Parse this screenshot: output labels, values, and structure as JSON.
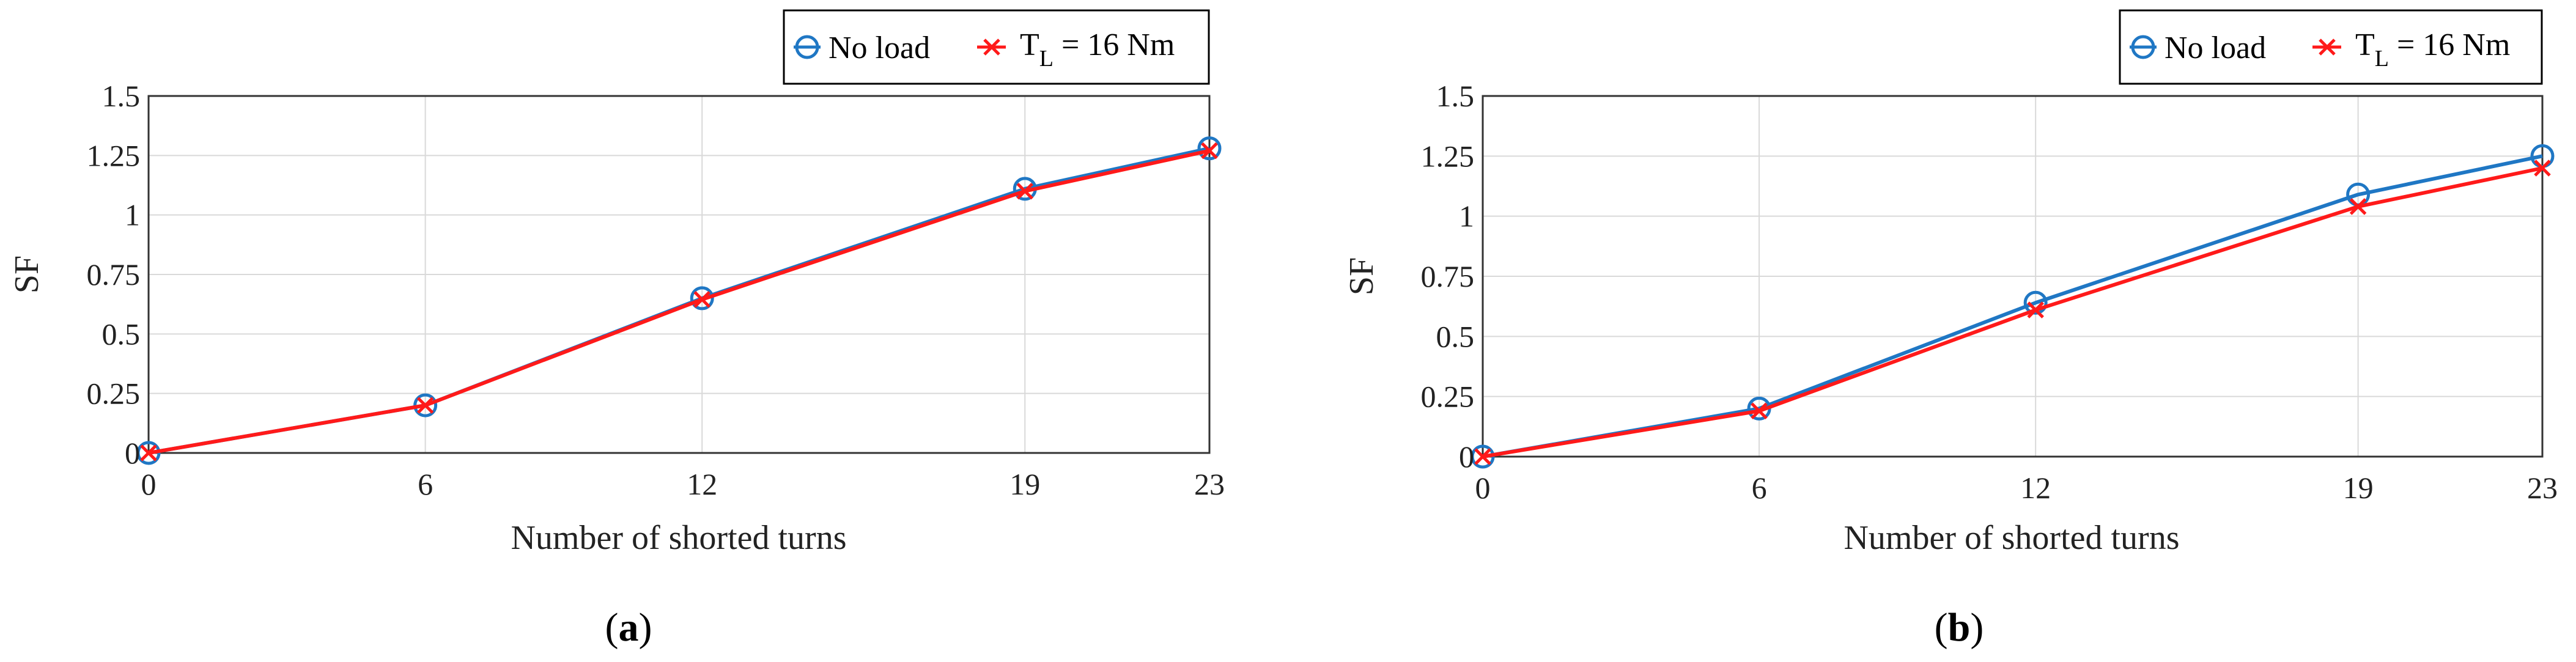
{
  "chart_data": [
    {
      "type": "line",
      "panel_label": "a",
      "x": [
        0,
        6,
        12,
        19,
        23
      ],
      "xticks": [
        "0",
        "6",
        "12",
        "19",
        "23"
      ],
      "yticks": [
        "0",
        "0.25",
        "0.5",
        "0.75",
        "1",
        "1.25",
        "1.5"
      ],
      "xlim": [
        0,
        23
      ],
      "ylim": [
        0,
        1.5
      ],
      "xlabel": "Number of shorted turns",
      "ylabel": "SF",
      "grid": true,
      "legend_position": "top-right (outside, above plot)",
      "series": [
        {
          "name": "No load",
          "marker": "circle",
          "color": "#1f77c4",
          "values": [
            0,
            0.2,
            0.65,
            1.11,
            1.28
          ]
        },
        {
          "name": "T_L = 16 Nm",
          "marker": "x",
          "color": "#ff1a1a",
          "values": [
            0,
            0.2,
            0.645,
            1.1,
            1.27
          ]
        }
      ]
    },
    {
      "type": "line",
      "panel_label": "b",
      "x": [
        0,
        6,
        12,
        19,
        23
      ],
      "xticks": [
        "0",
        "6",
        "12",
        "19",
        "23"
      ],
      "yticks": [
        "0",
        "0.25",
        "0.5",
        "0.75",
        "1",
        "1.25",
        "1.5"
      ],
      "xlim": [
        0,
        23
      ],
      "ylim": [
        0,
        1.5
      ],
      "xlabel": "Number of shorted turns",
      "ylabel": "SF",
      "grid": true,
      "legend_position": "top-right (outside, above plot)",
      "series": [
        {
          "name": "No load",
          "marker": "circle",
          "color": "#1f77c4",
          "values": [
            0,
            0.2,
            0.64,
            1.09,
            1.25
          ]
        },
        {
          "name": "T_L = 16 Nm",
          "marker": "x",
          "color": "#ff1a1a",
          "values": [
            0,
            0.19,
            0.61,
            1.04,
            1.2
          ]
        }
      ]
    }
  ],
  "legend": {
    "no_load": "No load",
    "tl_main": "T",
    "tl_sub": "L",
    "tl_rest": " = 16 Nm"
  },
  "captions": {
    "a": {
      "open": "(",
      "letter": "a",
      "close": ")"
    },
    "b": {
      "open": "(",
      "letter": "b",
      "close": ")"
    }
  }
}
